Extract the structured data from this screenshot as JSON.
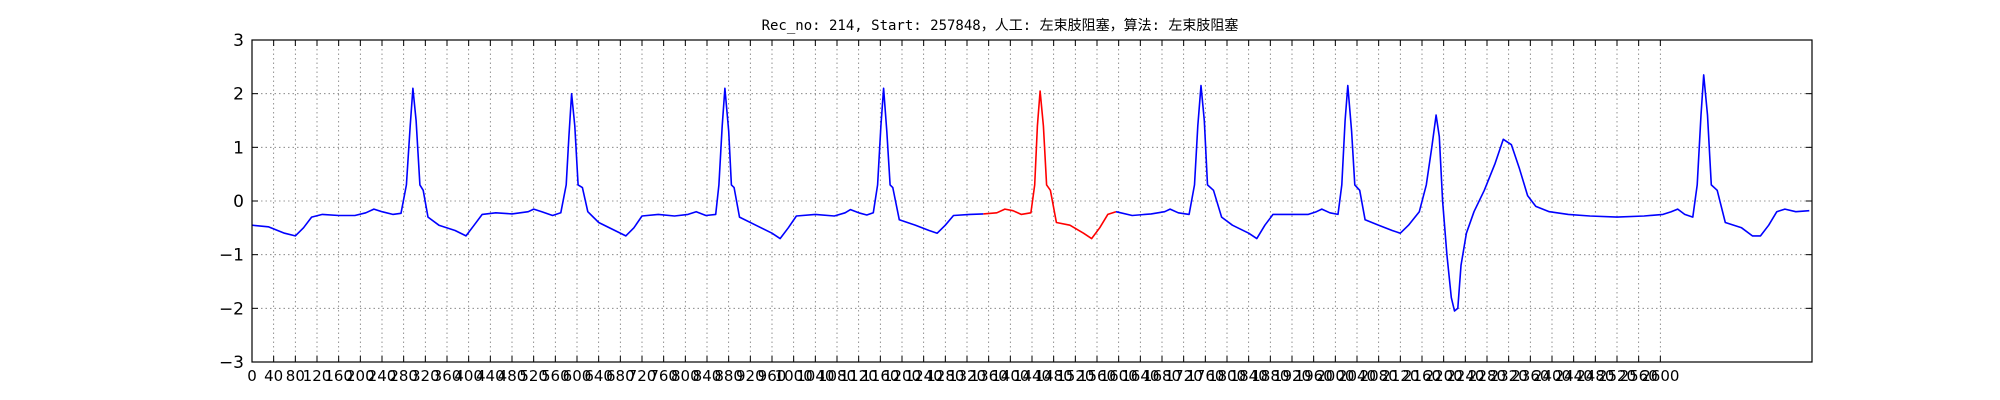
{
  "chart_data": {
    "type": "line",
    "title": "Rec_no: 214, Start: 257848，人工: 左束肢阻塞，算法: 左束肢阻塞",
    "xlabel": "",
    "ylabel": "",
    "xlim": [
      0,
      2880
    ],
    "ylim": [
      -3,
      3
    ],
    "grid": true,
    "y_ticks": [
      3,
      2,
      1,
      0,
      -1,
      -2,
      -3
    ],
    "y_tick_labels": [
      "3",
      "2",
      "1",
      "0",
      "−1",
      "−2",
      "−3"
    ],
    "x_tick_labels": [
      "0",
      "40",
      "80",
      "120",
      "160",
      "200",
      "240",
      "280",
      "320",
      "360",
      "400",
      "440",
      "480",
      "520",
      "560",
      "600",
      "640",
      "680",
      "720",
      "760",
      "800",
      "840",
      "880",
      "920",
      "960",
      "1000",
      "1040",
      "1080",
      "1120",
      "1160",
      "1200",
      "1240",
      "1280",
      "1320",
      "1360",
      "1400",
      "1440",
      "1480",
      "1520",
      "1560",
      "1600",
      "1640",
      "1680",
      "1720",
      "1760",
      "1800",
      "1840",
      "1880",
      "1920",
      "1960",
      "2000",
      "2040",
      "2080",
      "2120",
      "2160",
      "2200",
      "2240",
      "2280",
      "2320",
      "2360",
      "2400",
      "2440",
      "2480",
      "2520",
      "2560",
      "2600"
    ],
    "series": [
      {
        "color": "#0000ff",
        "points": [
          [
            0,
            -0.45
          ],
          [
            30,
            -0.48
          ],
          [
            60,
            -0.6
          ],
          [
            80,
            -0.65
          ],
          [
            95,
            -0.5
          ],
          [
            110,
            -0.3
          ],
          [
            130,
            -0.25
          ],
          [
            160,
            -0.27
          ],
          [
            190,
            -0.27
          ],
          [
            210,
            -0.22
          ],
          [
            225,
            -0.15
          ],
          [
            240,
            -0.2
          ],
          [
            260,
            -0.25
          ],
          [
            275,
            -0.23
          ],
          [
            285,
            0.3
          ],
          [
            292,
            1.4
          ],
          [
            297,
            2.1
          ],
          [
            303,
            1.5
          ],
          [
            310,
            0.3
          ],
          [
            316,
            0.2
          ],
          [
            325,
            -0.3
          ],
          [
            345,
            -0.45
          ],
          [
            375,
            -0.55
          ],
          [
            395,
            -0.65
          ],
          [
            410,
            -0.45
          ],
          [
            425,
            -0.25
          ],
          [
            450,
            -0.22
          ],
          [
            480,
            -0.24
          ],
          [
            510,
            -0.2
          ],
          [
            520,
            -0.15
          ],
          [
            535,
            -0.2
          ],
          [
            555,
            -0.27
          ],
          [
            570,
            -0.22
          ],
          [
            580,
            0.3
          ],
          [
            585,
            1.2
          ],
          [
            590,
            2.0
          ],
          [
            596,
            1.4
          ],
          [
            602,
            0.3
          ],
          [
            610,
            0.25
          ],
          [
            620,
            -0.2
          ],
          [
            640,
            -0.4
          ],
          [
            670,
            -0.55
          ],
          [
            690,
            -0.65
          ],
          [
            705,
            -0.5
          ],
          [
            720,
            -0.28
          ],
          [
            750,
            -0.25
          ],
          [
            780,
            -0.28
          ],
          [
            805,
            -0.25
          ],
          [
            820,
            -0.2
          ],
          [
            838,
            -0.27
          ],
          [
            856,
            -0.25
          ],
          [
            862,
            0.3
          ],
          [
            868,
            1.4
          ],
          [
            873,
            2.1
          ],
          [
            880,
            1.3
          ],
          [
            885,
            0.3
          ],
          [
            890,
            0.25
          ],
          [
            900,
            -0.3
          ],
          [
            930,
            -0.45
          ],
          [
            960,
            -0.6
          ],
          [
            975,
            -0.7
          ],
          [
            990,
            -0.5
          ],
          [
            1005,
            -0.28
          ],
          [
            1040,
            -0.25
          ],
          [
            1075,
            -0.28
          ],
          [
            1095,
            -0.22
          ],
          [
            1105,
            -0.16
          ],
          [
            1120,
            -0.22
          ],
          [
            1135,
            -0.26
          ],
          [
            1147,
            -0.22
          ],
          [
            1155,
            0.3
          ],
          [
            1161,
            1.4
          ],
          [
            1166,
            2.1
          ],
          [
            1172,
            1.3
          ],
          [
            1178,
            0.3
          ],
          [
            1183,
            0.25
          ],
          [
            1195,
            -0.35
          ],
          [
            1225,
            -0.45
          ],
          [
            1250,
            -0.55
          ],
          [
            1265,
            -0.6
          ],
          [
            1280,
            -0.45
          ],
          [
            1295,
            -0.27
          ],
          [
            1325,
            -0.25
          ],
          [
            1350,
            -0.24
          ]
        ]
      },
      {
        "color": "#ff0000",
        "points": [
          [
            1350,
            -0.24
          ],
          [
            1375,
            -0.22
          ],
          [
            1390,
            -0.15
          ],
          [
            1405,
            -0.18
          ],
          [
            1420,
            -0.25
          ],
          [
            1438,
            -0.22
          ],
          [
            1445,
            0.3
          ],
          [
            1450,
            1.4
          ],
          [
            1455,
            2.05
          ],
          [
            1461,
            1.4
          ],
          [
            1467,
            0.3
          ],
          [
            1474,
            0.2
          ],
          [
            1485,
            -0.4
          ],
          [
            1510,
            -0.45
          ],
          [
            1535,
            -0.6
          ],
          [
            1550,
            -0.7
          ],
          [
            1565,
            -0.5
          ],
          [
            1580,
            -0.25
          ],
          [
            1595,
            -0.2
          ]
        ]
      },
      {
        "color": "#0000ff",
        "points": [
          [
            1595,
            -0.2
          ],
          [
            1625,
            -0.27
          ],
          [
            1660,
            -0.24
          ],
          [
            1685,
            -0.2
          ],
          [
            1695,
            -0.15
          ],
          [
            1710,
            -0.22
          ],
          [
            1730,
            -0.25
          ],
          [
            1740,
            0.3
          ],
          [
            1746,
            1.4
          ],
          [
            1752,
            2.15
          ],
          [
            1758,
            1.5
          ],
          [
            1764,
            0.3
          ],
          [
            1775,
            0.2
          ],
          [
            1790,
            -0.3
          ],
          [
            1810,
            -0.45
          ],
          [
            1840,
            -0.6
          ],
          [
            1855,
            -0.7
          ],
          [
            1870,
            -0.45
          ],
          [
            1885,
            -0.25
          ],
          [
            1920,
            -0.25
          ],
          [
            1950,
            -0.25
          ],
          [
            1965,
            -0.2
          ],
          [
            1975,
            -0.15
          ],
          [
            1990,
            -0.22
          ],
          [
            2005,
            -0.25
          ],
          [
            2012,
            0.3
          ],
          [
            2018,
            1.5
          ],
          [
            2023,
            2.15
          ],
          [
            2030,
            1.3
          ],
          [
            2036,
            0.3
          ],
          [
            2045,
            0.2
          ],
          [
            2055,
            -0.35
          ],
          [
            2080,
            -0.45
          ],
          [
            2105,
            -0.55
          ],
          [
            2120,
            -0.6
          ],
          [
            2135,
            -0.45
          ],
          [
            2155,
            -0.2
          ],
          [
            2168,
            0.3
          ],
          [
            2178,
            1.0
          ],
          [
            2186,
            1.6
          ],
          [
            2192,
            1.2
          ],
          [
            2198,
            0.0
          ],
          [
            2206,
            -1.0
          ],
          [
            2214,
            -1.8
          ],
          [
            2220,
            -2.05
          ],
          [
            2226,
            -2.0
          ],
          [
            2232,
            -1.2
          ],
          [
            2242,
            -0.6
          ],
          [
            2256,
            -0.2
          ],
          [
            2275,
            0.2
          ],
          [
            2295,
            0.7
          ],
          [
            2310,
            1.15
          ],
          [
            2325,
            1.05
          ],
          [
            2340,
            0.6
          ],
          [
            2355,
            0.1
          ],
          [
            2370,
            -0.1
          ],
          [
            2395,
            -0.2
          ],
          [
            2430,
            -0.25
          ],
          [
            2470,
            -0.28
          ],
          [
            2520,
            -0.3
          ],
          [
            2570,
            -0.28
          ],
          [
            2605,
            -0.25
          ],
          [
            2620,
            -0.2
          ],
          [
            2632,
            -0.15
          ],
          [
            2645,
            -0.25
          ],
          [
            2660,
            -0.3
          ],
          [
            2668,
            0.3
          ],
          [
            2675,
            1.6
          ],
          [
            2680,
            2.35
          ],
          [
            2687,
            1.6
          ],
          [
            2694,
            0.3
          ],
          [
            2705,
            0.2
          ],
          [
            2720,
            -0.4
          ],
          [
            2750,
            -0.5
          ],
          [
            2770,
            -0.65
          ],
          [
            2785,
            -0.65
          ],
          [
            2800,
            -0.45
          ],
          [
            2815,
            -0.2
          ],
          [
            2830,
            -0.15
          ],
          [
            2850,
            -0.2
          ],
          [
            2875,
            -0.18
          ]
        ]
      }
    ]
  }
}
